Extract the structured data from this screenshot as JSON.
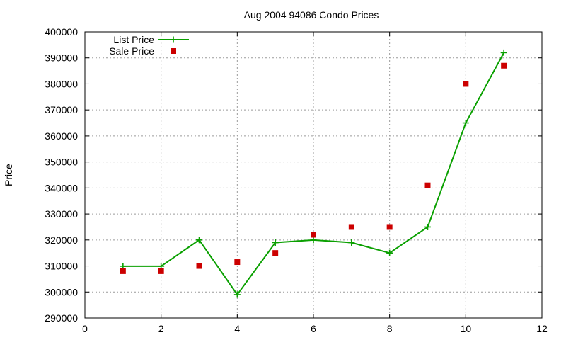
{
  "chart_data": {
    "type": "line",
    "title": "Aug 2004 94086 Condo Prices",
    "xlabel": "",
    "ylabel": "Price",
    "xlim": [
      0,
      12
    ],
    "ylim": [
      290000,
      400000
    ],
    "x_ticks": [
      0,
      2,
      4,
      6,
      8,
      10,
      12
    ],
    "y_ticks": [
      290000,
      300000,
      310000,
      320000,
      330000,
      340000,
      350000,
      360000,
      370000,
      380000,
      390000,
      400000
    ],
    "grid": true,
    "legend_position": "top-left",
    "series": [
      {
        "name": "List Price",
        "style": "linespoints",
        "marker": "plus",
        "color": "#0aa000",
        "points": [
          [
            1,
            309900
          ],
          [
            2,
            309900
          ],
          [
            3,
            320000
          ],
          [
            4,
            299000
          ],
          [
            5,
            319000
          ],
          [
            6,
            320000
          ],
          [
            7,
            319000
          ],
          [
            8,
            315000
          ],
          [
            9,
            325000
          ],
          [
            10,
            365000
          ],
          [
            11,
            392000
          ]
        ]
      },
      {
        "name": "Sale Price",
        "style": "points",
        "marker": "square",
        "color": "#cc0000",
        "points": [
          [
            1,
            308000
          ],
          [
            2,
            308000
          ],
          [
            3,
            310000
          ],
          [
            4,
            311500
          ],
          [
            5,
            315000
          ],
          [
            6,
            322000
          ],
          [
            7,
            325000
          ],
          [
            8,
            325000
          ],
          [
            9,
            341000
          ],
          [
            10,
            380000
          ],
          [
            11,
            387000
          ]
        ]
      }
    ]
  }
}
